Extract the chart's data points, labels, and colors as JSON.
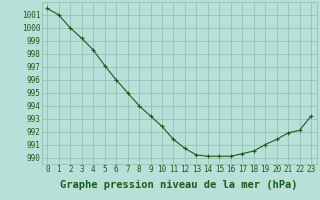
{
  "x": [
    0,
    1,
    2,
    3,
    4,
    5,
    6,
    7,
    8,
    9,
    10,
    11,
    12,
    13,
    14,
    15,
    16,
    17,
    18,
    19,
    20,
    21,
    22,
    23
  ],
  "y": [
    1001.5,
    1001.0,
    1000.0,
    999.2,
    998.3,
    997.1,
    996.0,
    995.0,
    994.0,
    993.2,
    992.4,
    991.4,
    990.7,
    990.2,
    990.1,
    990.1,
    990.1,
    990.3,
    990.5,
    991.0,
    991.4,
    991.9,
    992.1,
    993.2
  ],
  "line_color": "#1a5c1a",
  "marker": "+",
  "bg_color": "#b8e0d8",
  "grid_color": "#88bfb0",
  "xlabel": "Graphe pression niveau de la mer (hPa)",
  "ylim": [
    989.5,
    1002.0
  ],
  "xlim": [
    -0.5,
    23.5
  ],
  "yticks": [
    990,
    991,
    992,
    993,
    994,
    995,
    996,
    997,
    998,
    999,
    1000,
    1001
  ],
  "xticks": [
    0,
    1,
    2,
    3,
    4,
    5,
    6,
    7,
    8,
    9,
    10,
    11,
    12,
    13,
    14,
    15,
    16,
    17,
    18,
    19,
    20,
    21,
    22,
    23
  ],
  "tick_label_fontsize": 5.5,
  "xlabel_fontsize": 7.5
}
